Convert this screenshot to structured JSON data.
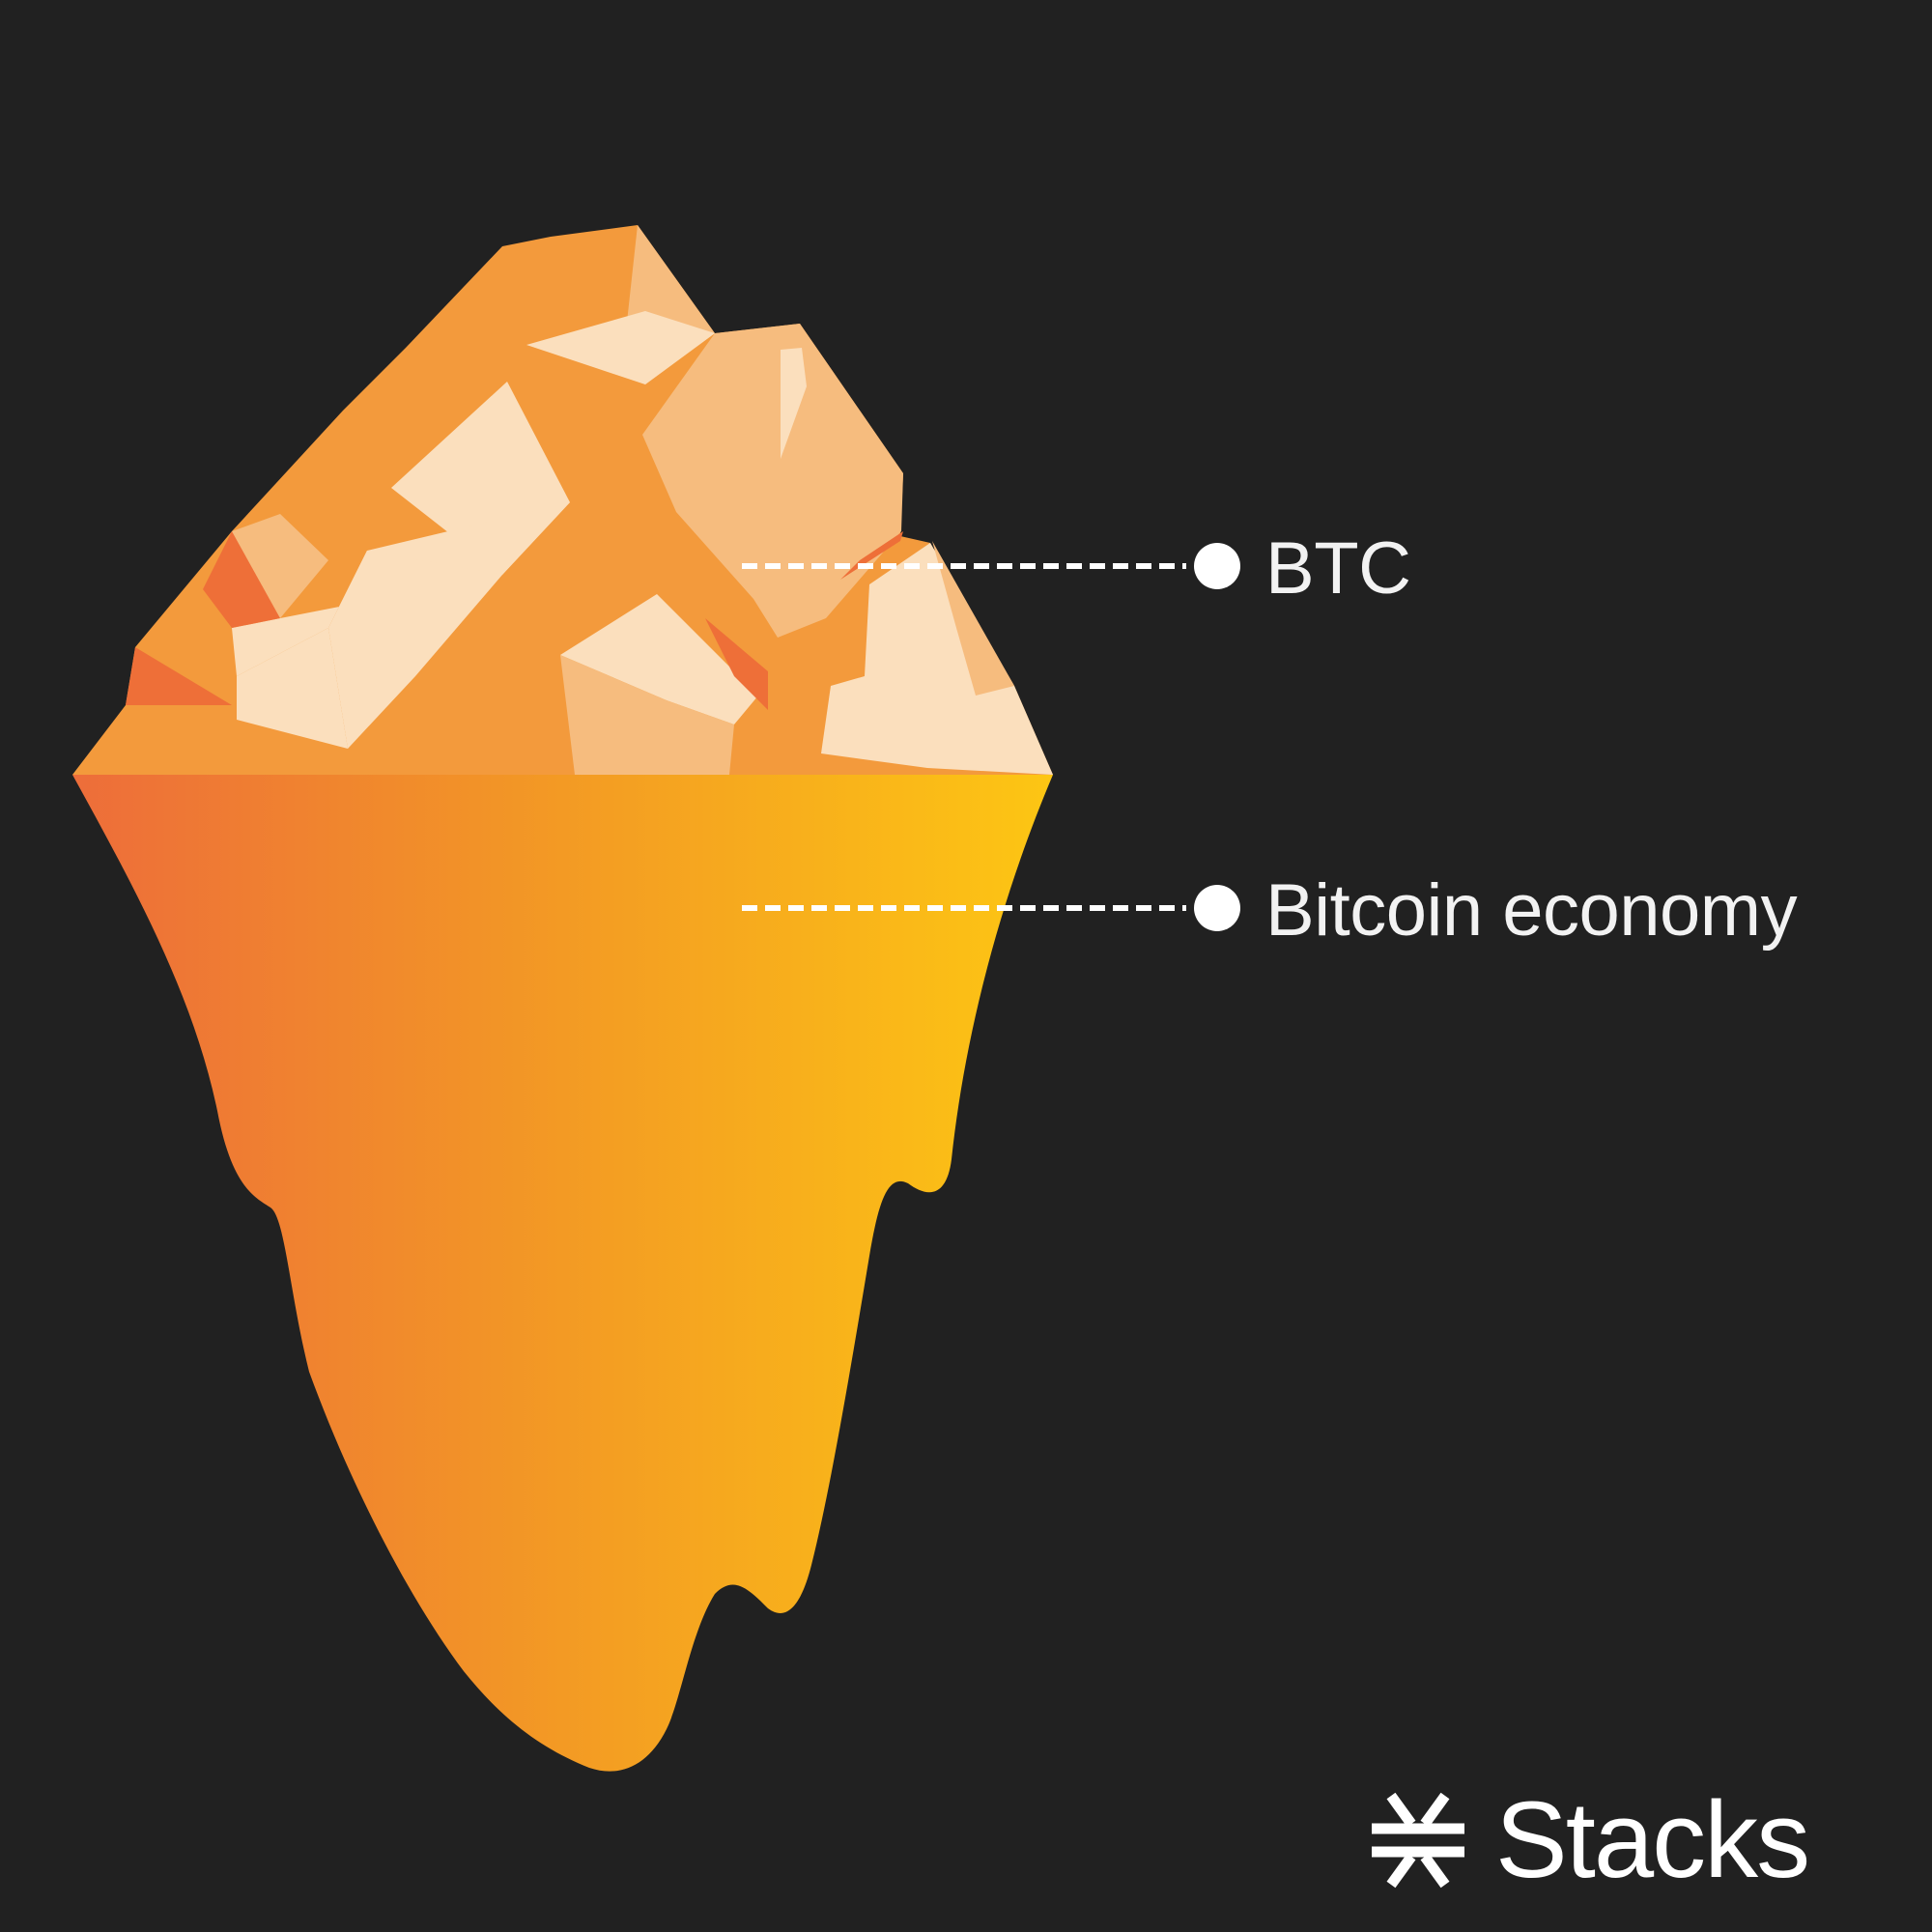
{
  "callouts": [
    {
      "label": "BTC"
    },
    {
      "label": "Bitcoin economy"
    }
  ],
  "brand": {
    "name": "Stacks",
    "icon": "stacks-logo-icon"
  },
  "colors": {
    "background": "#212121",
    "gradient_left": "#ED6D3A",
    "gradient_mid": "#F39A24",
    "gradient_right": "#FDC613",
    "facet_dark": "#F39A3C",
    "facet_mid": "#F6BC7E",
    "facet_light": "#FBDFBD",
    "facet_accent": "#EE6F38",
    "text": "#F2F2F2"
  }
}
